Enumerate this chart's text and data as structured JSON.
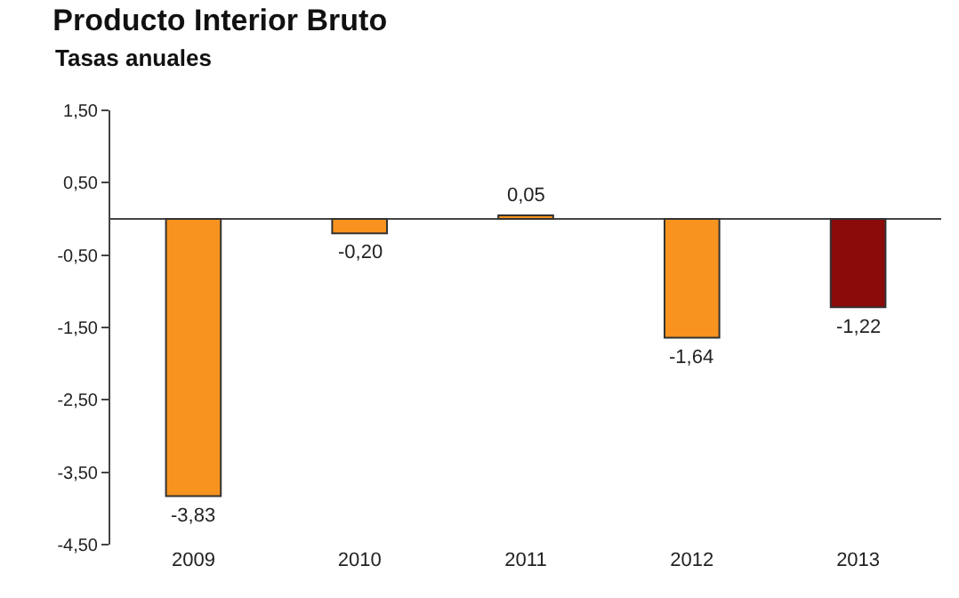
{
  "chart_data": {
    "type": "bar",
    "title": "Producto Interior Bruto",
    "subtitle": "Tasas anuales",
    "categories": [
      "2009",
      "2010",
      "2011",
      "2012",
      "2013"
    ],
    "values": [
      -3.83,
      -0.2,
      0.05,
      -1.64,
      -1.22
    ],
    "colors": [
      "#f7931e",
      "#f7931e",
      "#f7931e",
      "#f7931e",
      "#8b0a0a"
    ],
    "value_labels": [
      "-3,83",
      "-0,20",
      "0,05",
      "-1,64",
      "-1,22"
    ],
    "ylim": [
      -4.5,
      1.5
    ],
    "yticks": [
      {
        "value": 1.5,
        "label": "1,50"
      },
      {
        "value": 0.5,
        "label": "0,50"
      },
      {
        "value": -0.5,
        "label": "-0,50"
      },
      {
        "value": -1.5,
        "label": "-1,50"
      },
      {
        "value": -2.5,
        "label": "-2,50"
      },
      {
        "value": -3.5,
        "label": "-3,50"
      },
      {
        "value": -4.5,
        "label": "-4,50"
      }
    ],
    "legend": false
  }
}
